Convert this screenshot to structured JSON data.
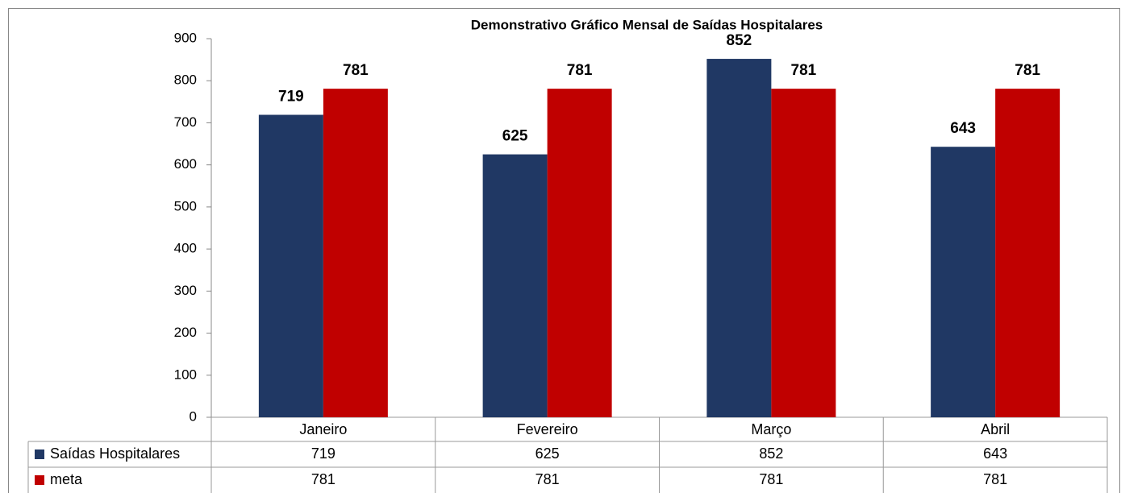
{
  "chart_data": {
    "type": "bar",
    "title": "Demonstrativo Gráfico Mensal de Saídas Hospitalares",
    "categories": [
      "Janeiro",
      "Fevereiro",
      "Março",
      "Abril"
    ],
    "series": [
      {
        "name": "Saídas Hospitalares",
        "color": "#203864",
        "values": [
          719,
          625,
          852,
          643
        ]
      },
      {
        "name": "meta",
        "color": "#c00000",
        "values": [
          781,
          781,
          781,
          781
        ]
      }
    ],
    "ylim": [
      0,
      900
    ],
    "yticks": [
      0,
      100,
      200,
      300,
      400,
      500,
      600,
      700,
      800,
      900
    ],
    "grid": false
  }
}
